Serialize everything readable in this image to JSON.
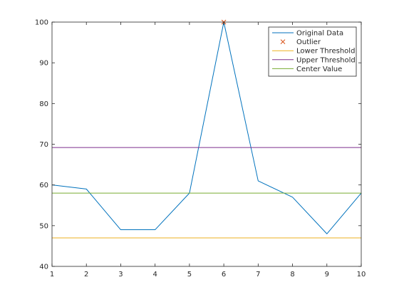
{
  "chart_data": {
    "type": "line",
    "title": "",
    "xlabel": "",
    "ylabel": "",
    "xlim": [
      1,
      10
    ],
    "ylim": [
      40,
      100
    ],
    "x_ticks": [
      "1",
      "2",
      "3",
      "4",
      "5",
      "6",
      "7",
      "8",
      "9",
      "10"
    ],
    "y_ticks": [
      "40",
      "50",
      "60",
      "70",
      "80",
      "90",
      "100"
    ],
    "grid": false,
    "legend_position": "top-right",
    "series": [
      {
        "name": "Original Data",
        "kind": "line",
        "color": "#0072BD",
        "x": [
          1,
          2,
          3,
          4,
          5,
          6,
          7,
          8,
          9,
          10
        ],
        "y": [
          60,
          59,
          49,
          49,
          58,
          100,
          61,
          57,
          48,
          58
        ]
      },
      {
        "name": "Outlier",
        "kind": "marker-x",
        "color": "#D95319",
        "x": [
          6
        ],
        "y": [
          100
        ]
      },
      {
        "name": "Lower Threshold",
        "kind": "hline",
        "color": "#EDB120",
        "y": 47
      },
      {
        "name": "Upper Threshold",
        "kind": "hline",
        "color": "#7E2F8E",
        "y": 69.2
      },
      {
        "name": "Center Value",
        "kind": "hline",
        "color": "#77AC30",
        "y": 58
      }
    ]
  }
}
